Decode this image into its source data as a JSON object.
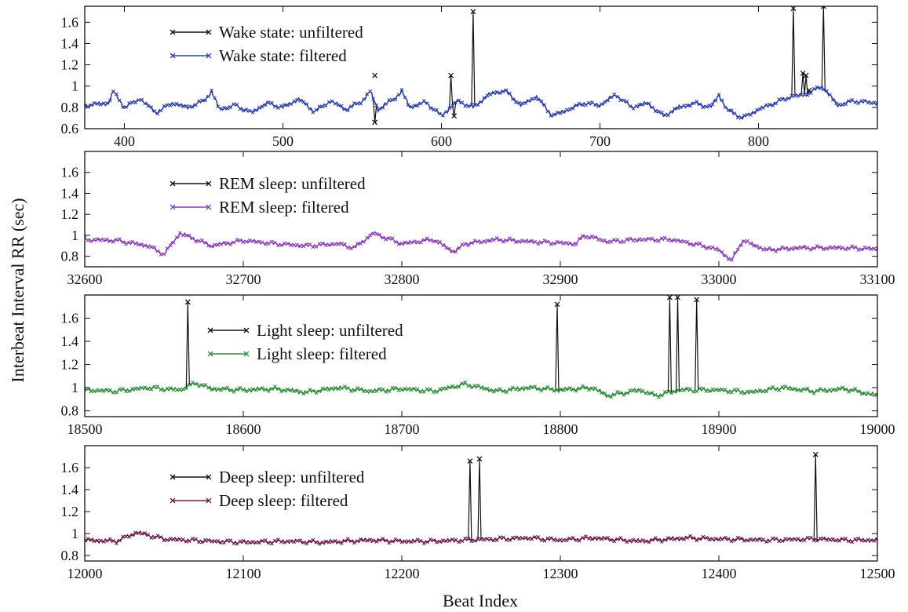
{
  "figure": {
    "ylabel": "Interbeat Interval RR (sec)",
    "xlabel": "Beat Index"
  },
  "chart_data": [
    {
      "type": "line",
      "xlim": [
        375,
        875
      ],
      "ylim": [
        0.6,
        1.75
      ],
      "xticks": [
        400,
        500,
        600,
        700,
        800
      ],
      "yticks": [
        0.6,
        0.8,
        1,
        1.2,
        1.4,
        1.6
      ],
      "legend_position": "top-left",
      "baseline": [
        [
          375,
          0.82
        ],
        [
          390,
          0.84
        ],
        [
          393,
          0.95
        ],
        [
          400,
          0.8
        ],
        [
          410,
          0.88
        ],
        [
          420,
          0.75
        ],
        [
          430,
          0.84
        ],
        [
          440,
          0.8
        ],
        [
          450,
          0.86
        ],
        [
          455,
          0.95
        ],
        [
          460,
          0.78
        ],
        [
          470,
          0.82
        ],
        [
          480,
          0.75
        ],
        [
          490,
          0.84
        ],
        [
          500,
          0.8
        ],
        [
          510,
          0.88
        ],
        [
          520,
          0.76
        ],
        [
          530,
          0.86
        ],
        [
          540,
          0.78
        ],
        [
          550,
          0.86
        ],
        [
          555,
          0.95
        ],
        [
          560,
          0.78
        ],
        [
          570,
          0.88
        ],
        [
          575,
          0.95
        ],
        [
          580,
          0.8
        ],
        [
          590,
          0.85
        ],
        [
          600,
          0.72
        ],
        [
          610,
          0.86
        ],
        [
          620,
          0.8
        ],
        [
          630,
          0.92
        ],
        [
          640,
          0.96
        ],
        [
          650,
          0.82
        ],
        [
          660,
          0.9
        ],
        [
          670,
          0.72
        ],
        [
          680,
          0.78
        ],
        [
          690,
          0.84
        ],
        [
          700,
          0.82
        ],
        [
          710,
          0.92
        ],
        [
          720,
          0.8
        ],
        [
          730,
          0.84
        ],
        [
          740,
          0.72
        ],
        [
          750,
          0.8
        ],
        [
          760,
          0.84
        ],
        [
          770,
          0.8
        ],
        [
          775,
          0.92
        ],
        [
          780,
          0.78
        ],
        [
          790,
          0.7
        ],
        [
          800,
          0.78
        ],
        [
          810,
          0.84
        ],
        [
          820,
          0.9
        ],
        [
          830,
          0.92
        ],
        [
          840,
          1.0
        ],
        [
          850,
          0.82
        ],
        [
          860,
          0.86
        ],
        [
          875,
          0.84
        ]
      ],
      "spikes": [
        [
          558,
          1.1
        ],
        [
          558,
          0.66
        ],
        [
          606,
          1.1
        ],
        [
          608,
          0.72
        ],
        [
          620,
          1.7
        ],
        [
          822,
          1.73
        ],
        [
          828,
          1.12
        ],
        [
          830,
          1.1
        ],
        [
          832,
          0.96
        ],
        [
          841,
          1.75
        ]
      ],
      "series": [
        {
          "name": "Wake state: unfiltered",
          "color": "#111111"
        },
        {
          "name": "Wake state: filtered",
          "color": "#2b3fa6"
        }
      ]
    },
    {
      "type": "line",
      "xlim": [
        32600,
        33100
      ],
      "ylim": [
        0.7,
        1.8
      ],
      "xticks": [
        32600,
        32700,
        32800,
        32900,
        33000,
        33100
      ],
      "yticks": [
        0.8,
        1,
        1.2,
        1.4,
        1.6
      ],
      "legend_position": "top-left",
      "baseline": [
        [
          32600,
          0.96
        ],
        [
          32620,
          0.95
        ],
        [
          32640,
          0.9
        ],
        [
          32650,
          0.82
        ],
        [
          32660,
          1.02
        ],
        [
          32680,
          0.9
        ],
        [
          32700,
          0.95
        ],
        [
          32720,
          0.92
        ],
        [
          32740,
          0.9
        ],
        [
          32760,
          0.92
        ],
        [
          32770,
          0.88
        ],
        [
          32782,
          1.02
        ],
        [
          32800,
          0.92
        ],
        [
          32820,
          0.96
        ],
        [
          32833,
          0.84
        ],
        [
          32840,
          0.92
        ],
        [
          32860,
          0.96
        ],
        [
          32880,
          0.94
        ],
        [
          32910,
          0.92
        ],
        [
          32915,
          1.0
        ],
        [
          32930,
          0.94
        ],
        [
          32950,
          0.96
        ],
        [
          32970,
          0.96
        ],
        [
          32990,
          0.9
        ],
        [
          33000,
          0.86
        ],
        [
          33008,
          0.76
        ],
        [
          33015,
          0.95
        ],
        [
          33030,
          0.86
        ],
        [
          33050,
          0.88
        ],
        [
          33080,
          0.88
        ],
        [
          33100,
          0.87
        ]
      ],
      "spikes": [],
      "series": [
        {
          "name": "REM sleep: unfiltered",
          "color": "#111111"
        },
        {
          "name": "REM sleep: filtered",
          "color": "#8a3fb3"
        }
      ]
    },
    {
      "type": "line",
      "xlim": [
        18500,
        19000
      ],
      "ylim": [
        0.75,
        1.8
      ],
      "xticks": [
        18500,
        18600,
        18700,
        18800,
        18900,
        19000
      ],
      "yticks": [
        0.8,
        1,
        1.2,
        1.4,
        1.6
      ],
      "legend_position": "top-center",
      "baseline": [
        [
          18500,
          0.98
        ],
        [
          18520,
          0.97
        ],
        [
          18540,
          1.0
        ],
        [
          18560,
          0.98
        ],
        [
          18570,
          1.04
        ],
        [
          18580,
          0.99
        ],
        [
          18600,
          0.98
        ],
        [
          18620,
          0.99
        ],
        [
          18640,
          0.96
        ],
        [
          18660,
          1.0
        ],
        [
          18680,
          0.97
        ],
        [
          18700,
          0.99
        ],
        [
          18720,
          0.97
        ],
        [
          18740,
          1.03
        ],
        [
          18760,
          0.97
        ],
        [
          18780,
          1.0
        ],
        [
          18800,
          0.98
        ],
        [
          18820,
          1.0
        ],
        [
          18830,
          0.93
        ],
        [
          18850,
          0.98
        ],
        [
          18860,
          0.93
        ],
        [
          18875,
          0.98
        ],
        [
          18900,
          0.98
        ],
        [
          18920,
          0.96
        ],
        [
          18940,
          1.0
        ],
        [
          18960,
          0.97
        ],
        [
          18980,
          0.99
        ],
        [
          19000,
          0.93
        ]
      ],
      "spikes": [
        [
          18565,
          1.74
        ],
        [
          18798,
          1.72
        ],
        [
          18869,
          1.78
        ],
        [
          18874,
          1.78
        ],
        [
          18886,
          1.76
        ]
      ],
      "series": [
        {
          "name": "Light sleep: unfiltered",
          "color": "#111111"
        },
        {
          "name": "Light sleep: filtered",
          "color": "#2e8b3a"
        }
      ]
    },
    {
      "type": "line",
      "xlim": [
        12000,
        12500
      ],
      "ylim": [
        0.75,
        1.8
      ],
      "xticks": [
        12000,
        12100,
        12200,
        12300,
        12400,
        12500
      ],
      "yticks": [
        0.8,
        1,
        1.2,
        1.4,
        1.6
      ],
      "legend_position": "top-left",
      "baseline": [
        [
          12000,
          0.94
        ],
        [
          12020,
          0.93
        ],
        [
          12033,
          1.01
        ],
        [
          12050,
          0.95
        ],
        [
          12080,
          0.93
        ],
        [
          12100,
          0.92
        ],
        [
          12130,
          0.93
        ],
        [
          12150,
          0.92
        ],
        [
          12180,
          0.94
        ],
        [
          12200,
          0.93
        ],
        [
          12220,
          0.93
        ],
        [
          12240,
          0.94
        ],
        [
          12260,
          0.95
        ],
        [
          12280,
          0.96
        ],
        [
          12300,
          0.94
        ],
        [
          12320,
          0.96
        ],
        [
          12350,
          0.93
        ],
        [
          12380,
          0.96
        ],
        [
          12400,
          0.95
        ],
        [
          12430,
          0.94
        ],
        [
          12460,
          0.95
        ],
        [
          12480,
          0.94
        ],
        [
          12500,
          0.94
        ]
      ],
      "spikes": [
        [
          12243,
          1.66
        ],
        [
          12249,
          1.68
        ],
        [
          12461,
          1.72
        ]
      ],
      "series": [
        {
          "name": "Deep sleep: unfiltered",
          "color": "#111111"
        },
        {
          "name": "Deep sleep: filtered",
          "color": "#6b1a48"
        }
      ]
    }
  ]
}
